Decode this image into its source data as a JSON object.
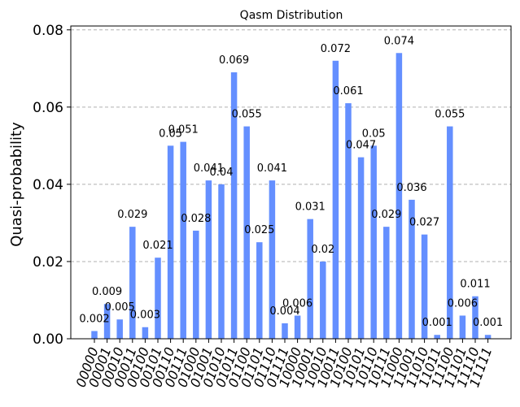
{
  "chart_data": {
    "type": "bar",
    "title": "Qasm Distribution",
    "xlabel": "",
    "ylabel": "Quasi-probability",
    "ylim": [
      0,
      0.081
    ],
    "yticks": [
      0.0,
      0.02,
      0.04,
      0.06,
      0.08
    ],
    "ytick_labels": [
      "0.00",
      "0.02",
      "0.04",
      "0.06",
      "0.08"
    ],
    "grid": "y-dashed",
    "color": "#648fff",
    "categories": [
      "00000",
      "00001",
      "00010",
      "00011",
      "00100",
      "00101",
      "00110",
      "00111",
      "01000",
      "01001",
      "01010",
      "01011",
      "01100",
      "01101",
      "01110",
      "01111",
      "10000",
      "10001",
      "10010",
      "10011",
      "10100",
      "10101",
      "10110",
      "10111",
      "11000",
      "11001",
      "11010",
      "11011",
      "11100",
      "11101",
      "11110",
      "11111"
    ],
    "values": [
      0.002,
      0.009,
      0.005,
      0.029,
      0.003,
      0.021,
      0.05,
      0.051,
      0.028,
      0.041,
      0.04,
      0.069,
      0.055,
      0.025,
      0.041,
      0.004,
      0.006,
      0.031,
      0.02,
      0.072,
      0.061,
      0.047,
      0.05,
      0.029,
      0.074,
      0.036,
      0.027,
      0.001,
      0.055,
      0.006,
      0.011,
      0.001
    ],
    "value_labels": [
      "0.002",
      "0.009",
      "0.005",
      "0.029",
      "0.003",
      "0.021",
      "0.05",
      "0.051",
      "0.028",
      "0.041",
      "0.04",
      "0.069",
      "0.055",
      "0.025",
      "0.041",
      "0.004",
      "0.006",
      "0.031",
      "0.02",
      "0.072",
      "0.061",
      "0.047",
      "0.05",
      "0.029",
      "0.074",
      "0.036",
      "0.027",
      "0.001",
      "0.055",
      "0.006",
      "0.011",
      "0.001"
    ]
  }
}
